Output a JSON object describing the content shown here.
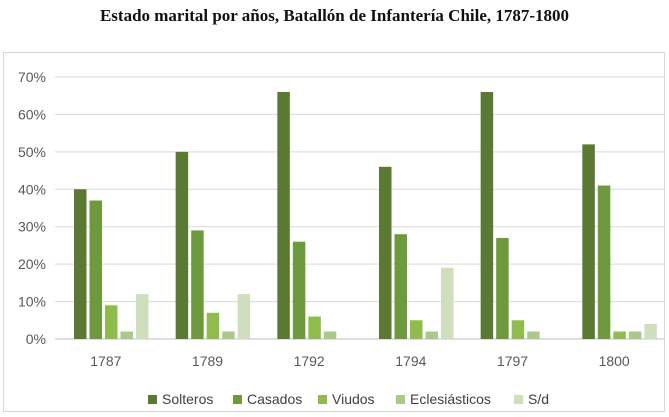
{
  "chart_data": {
    "type": "bar",
    "title": "Estado marital por años, Batallón de Infantería Chile, 1787-1800",
    "categories": [
      "1787",
      "1789",
      "1792",
      "1794",
      "1797",
      "1800"
    ],
    "series": [
      {
        "name": "Solteros",
        "color": "#5a7a34",
        "values": [
          40,
          50,
          66,
          46,
          66,
          52
        ]
      },
      {
        "name": "Casados",
        "color": "#6e9a3e",
        "values": [
          37,
          29,
          26,
          28,
          27,
          41
        ]
      },
      {
        "name": "Viudos",
        "color": "#8fbc4d",
        "values": [
          9,
          7,
          6,
          5,
          5,
          2
        ]
      },
      {
        "name": "Eclesiásticos",
        "color": "#aac98a",
        "values": [
          2,
          2,
          2,
          2,
          2,
          2
        ]
      },
      {
        "name": "S/d",
        "color": "#cfdfbd",
        "values": [
          12,
          12,
          0,
          19,
          0,
          4
        ]
      }
    ],
    "ylim": [
      0,
      70
    ],
    "yticks": [
      "0%",
      "10%",
      "20%",
      "30%",
      "40%",
      "50%",
      "60%",
      "70%"
    ],
    "grid": true,
    "legend_position": "bottom"
  }
}
